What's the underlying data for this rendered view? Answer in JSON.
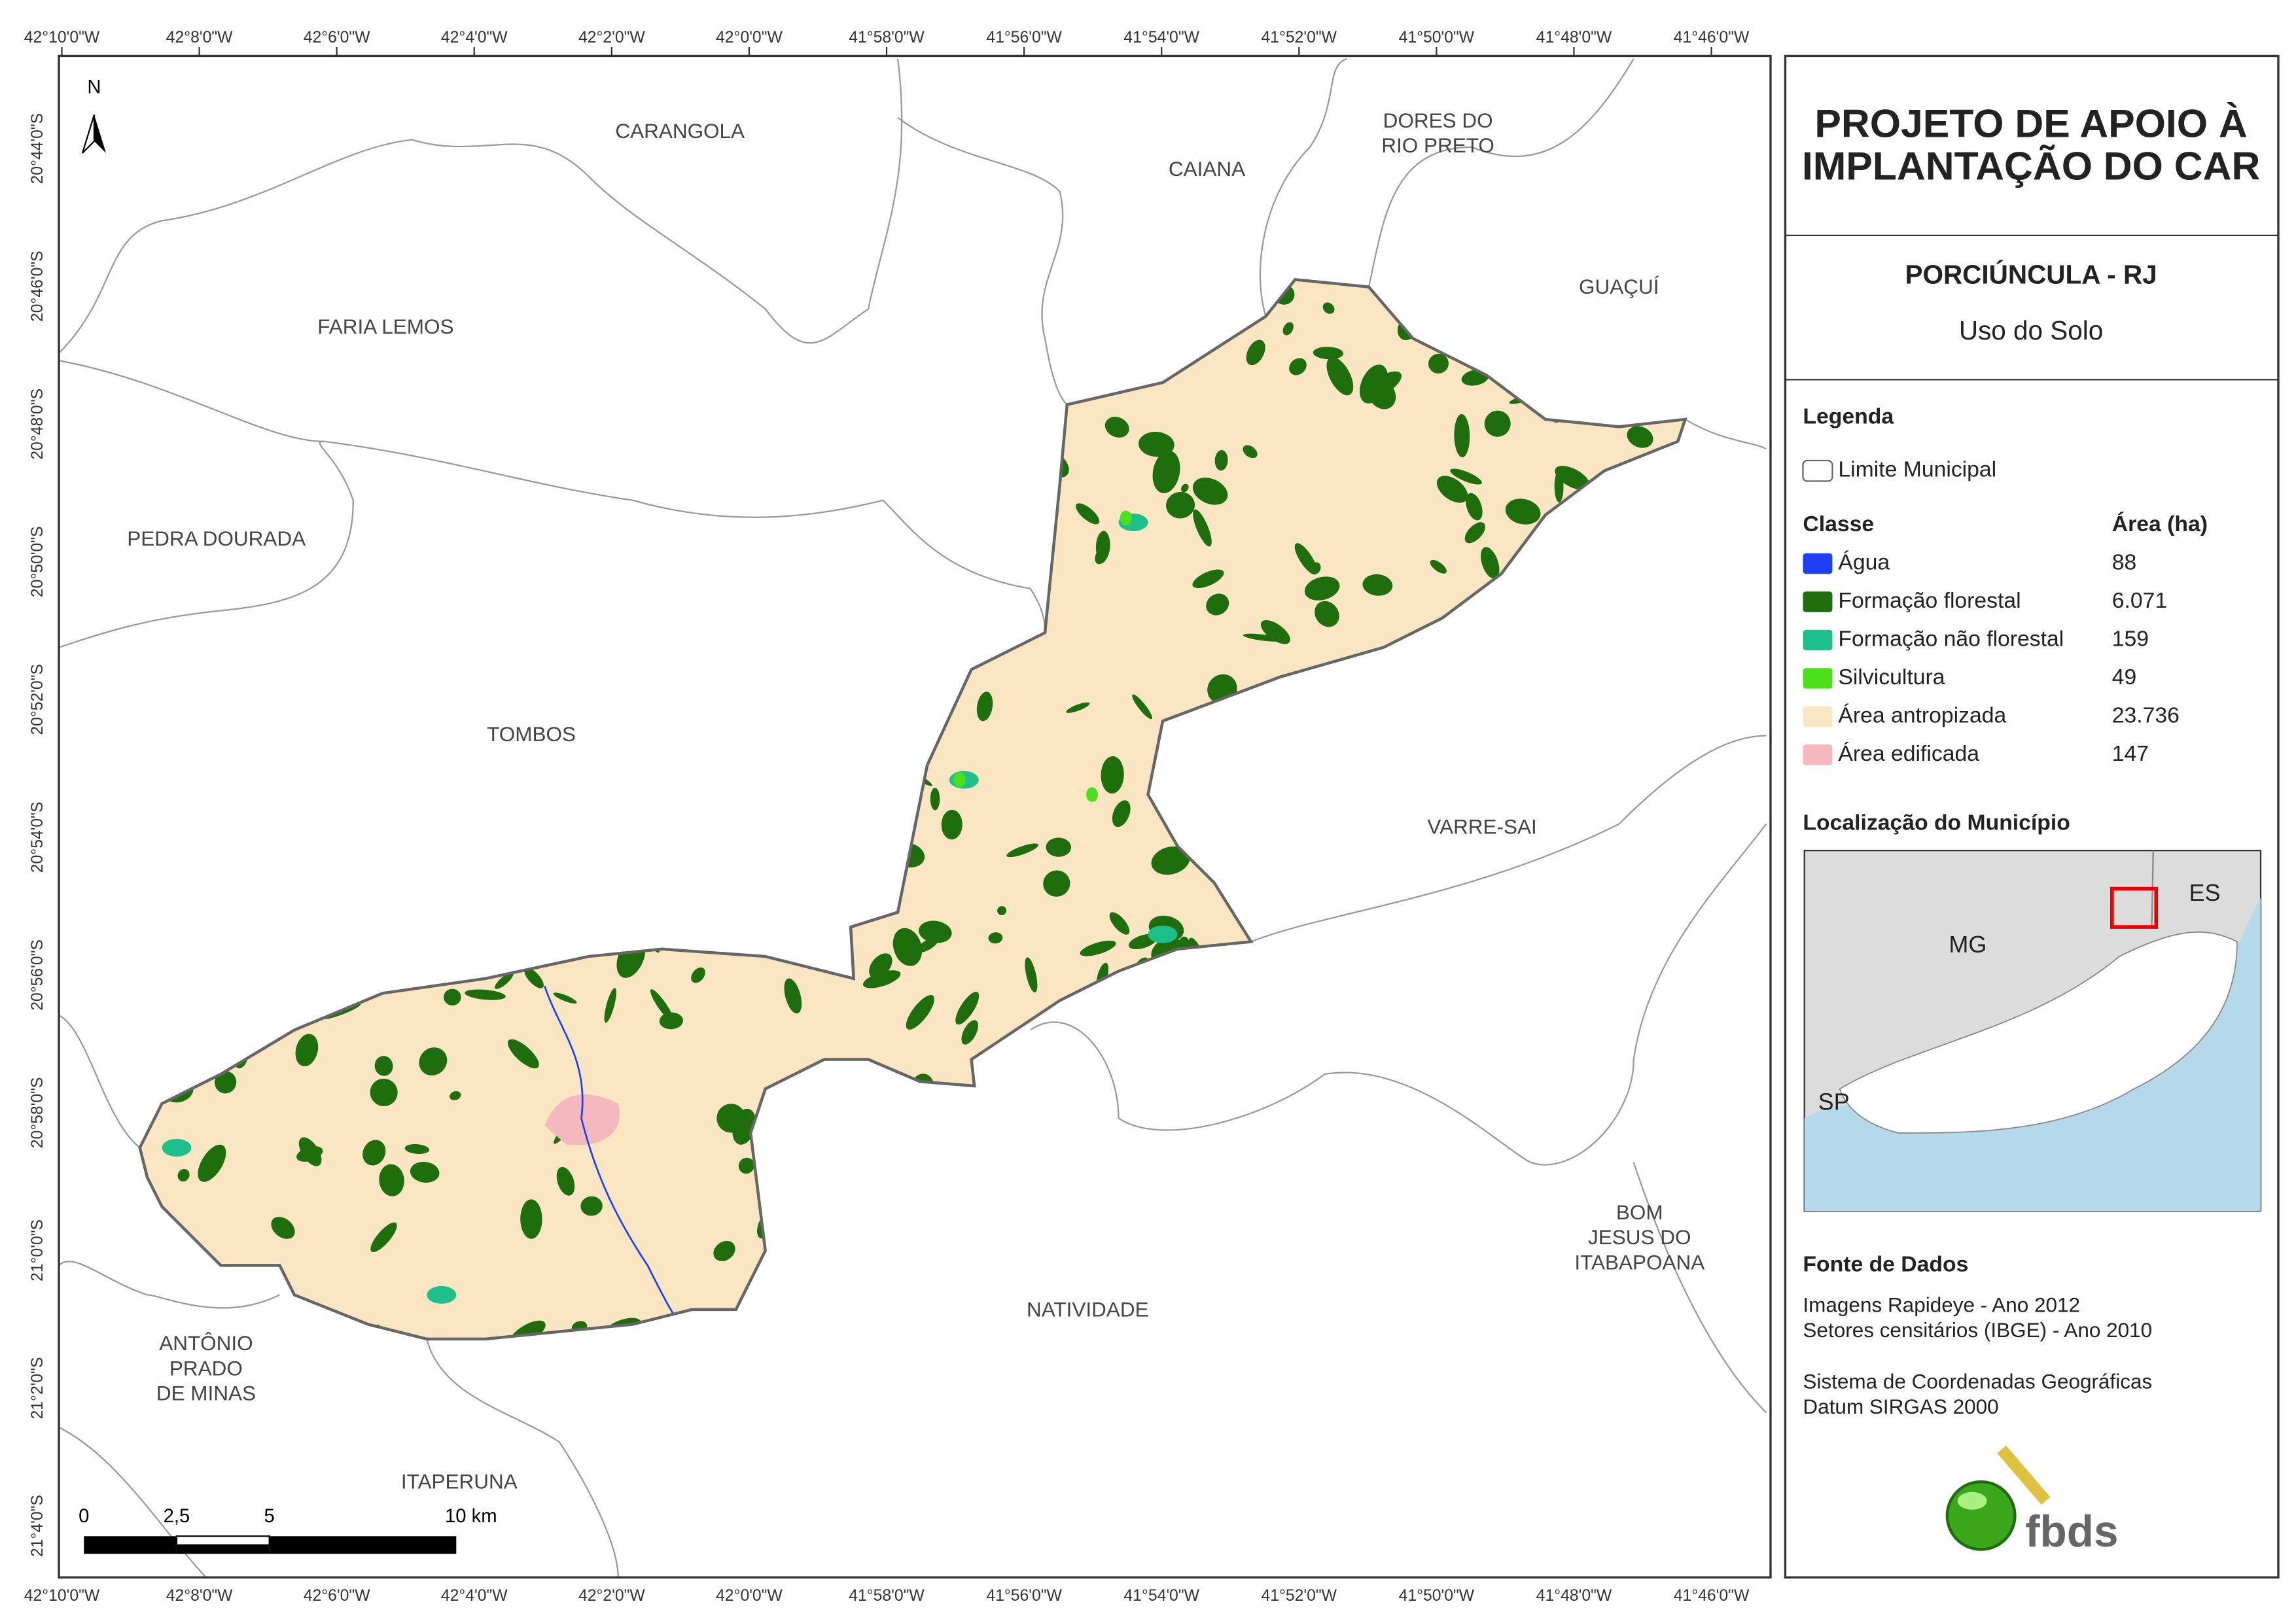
{
  "frame": {
    "lon_labels": [
      "42°10'0\"W",
      "42°8'0\"W",
      "42°6'0\"W",
      "42°4'0\"W",
      "42°2'0\"W",
      "42°0'0\"W",
      "41°58'0\"W",
      "41°56'0\"W",
      "41°54'0\"W",
      "41°52'0\"W",
      "41°50'0\"W",
      "41°48'0\"W",
      "41°46'0\"W"
    ],
    "lat_labels": [
      "20°44'0\"S",
      "20°46'0\"S",
      "20°48'0\"S",
      "20°50'0\"S",
      "20°52'0\"S",
      "20°54'0\"S",
      "20°56'0\"S",
      "20°58'0\"S",
      "21°0'0\"S",
      "21°2'0\"S",
      "21°4'0\"S"
    ]
  },
  "map": {
    "north": "N",
    "places": [
      {
        "lines": [
          "CARANGOLA"
        ]
      },
      {
        "lines": [
          "CAIANA"
        ]
      },
      {
        "lines": [
          "DORES DO",
          "RIO PRETO"
        ]
      },
      {
        "lines": [
          "GUAÇUÍ"
        ]
      },
      {
        "lines": [
          "FARIA LEMOS"
        ]
      },
      {
        "lines": [
          "PEDRA DOURADA"
        ]
      },
      {
        "lines": [
          "TOMBOS"
        ]
      },
      {
        "lines": [
          "VARRE-SAI"
        ]
      },
      {
        "lines": [
          "NATIVIDADE"
        ]
      },
      {
        "lines": [
          "BOM",
          "JESUS DO",
          "ITABAPOANA"
        ]
      },
      {
        "lines": [
          "ANTÔNIO",
          "PRADO",
          "DE MINAS"
        ]
      },
      {
        "lines": [
          "ITAPERUNA"
        ]
      }
    ],
    "scale_labels": [
      "0",
      "2,5",
      "5",
      "10 km"
    ]
  },
  "panel": {
    "title": [
      "PROJETO DE APOIO À",
      "IMPLANTAÇÃO DO CAR"
    ],
    "municipality": "PORCIÚNCULA - RJ",
    "theme": "Uso do Solo",
    "legend": {
      "heading": "Legenda",
      "boundary": "Limite Municipal",
      "class_header": "Classe",
      "area_header": "Área (ha)",
      "classes": [
        {
          "name": "Água",
          "area": "88",
          "color": "#1f3ff5"
        },
        {
          "name": "Formação florestal",
          "area": "6.071",
          "color": "#1e6e0e"
        },
        {
          "name": "Formação não florestal",
          "area": "159",
          "color": "#1dbf8a"
        },
        {
          "name": "Silvicultura",
          "area": "49",
          "color": "#4be01a"
        },
        {
          "name": "Área antropizada",
          "area": "23.736",
          "color": "#fae6c3"
        },
        {
          "name": "Área edificada",
          "area": "147",
          "color": "#f5b8bd"
        }
      ]
    },
    "location": {
      "heading": "Localização do Município",
      "labels": [
        "MG",
        "ES",
        "SP"
      ]
    },
    "sources": {
      "heading": "Fonte de Dados",
      "lines": [
        "Imagens Rapideye - Ano 2012",
        "Setores censitários (IBGE) - Ano 2010"
      ],
      "crs": [
        "Sistema de Coordenadas Geográficas",
        "Datum SIRGAS 2000"
      ]
    },
    "logo": "fbds"
  }
}
